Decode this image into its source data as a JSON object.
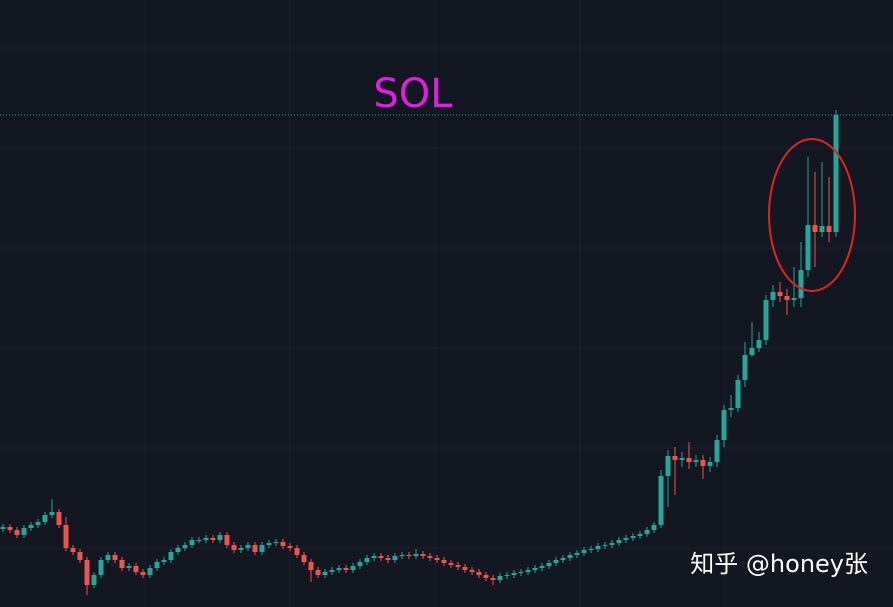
{
  "chart_data": {
    "type": "candlestick",
    "title": "SOL",
    "watermark": "知乎 @honey张",
    "up_color": "#26a69a",
    "down_color": "#ef5350",
    "price_line_color": "#26a69a",
    "ylim": [
      0,
      607
    ],
    "price_line": 492,
    "open": [
      78,
      80,
      77,
      72,
      79,
      82,
      85,
      92,
      95,
      82,
      59,
      55,
      47,
      22,
      32,
      47,
      52,
      47,
      39,
      41,
      35,
      32,
      39,
      45,
      47,
      55,
      59,
      62,
      67,
      67,
      69,
      67,
      72,
      62,
      57,
      59,
      62,
      55,
      62,
      64,
      65,
      61,
      59,
      52,
      45,
      37,
      32,
      35,
      37,
      39,
      37,
      41,
      45,
      49,
      51,
      49,
      47,
      51,
      52,
      51,
      53,
      51,
      49,
      47,
      44,
      42,
      40,
      37,
      35,
      32,
      29,
      27,
      31,
      32,
      34,
      35,
      37,
      39,
      41,
      44,
      47,
      49,
      52,
      54,
      57,
      58,
      61,
      62,
      64,
      67,
      69,
      71,
      73,
      77,
      82,
      131,
      151,
      147,
      149,
      145,
      147,
      141,
      145,
      167,
      197,
      199,
      227,
      252,
      259,
      267,
      307,
      315,
      311,
      307,
      309,
      337,
      382,
      375,
      381,
      375
    ],
    "high": [
      83,
      83,
      80,
      82,
      85,
      88,
      95,
      108,
      98,
      90,
      62,
      58,
      50,
      35,
      50,
      55,
      55,
      50,
      44,
      44,
      38,
      42,
      48,
      50,
      58,
      62,
      65,
      70,
      70,
      72,
      72,
      75,
      75,
      65,
      62,
      65,
      65,
      65,
      67,
      68,
      68,
      64,
      62,
      55,
      48,
      40,
      38,
      40,
      42,
      42,
      44,
      48,
      52,
      54,
      54,
      52,
      54,
      55,
      55,
      58,
      56,
      54,
      52,
      50,
      47,
      45,
      43,
      40,
      38,
      35,
      32,
      34,
      35,
      37,
      38,
      40,
      42,
      44,
      47,
      50,
      52,
      55,
      57,
      60,
      61,
      64,
      65,
      67,
      70,
      72,
      74,
      76,
      80,
      85,
      137,
      157,
      160,
      155,
      165,
      152,
      152,
      150,
      172,
      202,
      212,
      232,
      265,
      285,
      275,
      312,
      322,
      325,
      318,
      340,
      365,
      450,
      435,
      445,
      430,
      497
    ],
    "low": [
      75,
      74,
      69,
      69,
      76,
      79,
      82,
      89,
      79,
      56,
      52,
      44,
      12,
      19,
      29,
      44,
      44,
      36,
      36,
      32,
      29,
      29,
      36,
      42,
      44,
      52,
      56,
      59,
      64,
      64,
      64,
      64,
      59,
      54,
      54,
      56,
      52,
      52,
      59,
      61,
      58,
      56,
      49,
      42,
      25,
      29,
      29,
      32,
      34,
      34,
      34,
      38,
      42,
      46,
      46,
      44,
      44,
      48,
      48,
      48,
      48,
      46,
      44,
      41,
      39,
      37,
      34,
      32,
      29,
      26,
      22,
      24,
      28,
      29,
      31,
      32,
      34,
      36,
      38,
      41,
      44,
      46,
      49,
      51,
      54,
      55,
      58,
      59,
      61,
      64,
      66,
      68,
      70,
      74,
      79,
      100,
      112,
      140,
      138,
      140,
      128,
      135,
      140,
      160,
      190,
      195,
      220,
      250,
      255,
      262,
      300,
      305,
      292,
      300,
      300,
      330,
      340,
      370,
      365,
      370
    ],
    "close": [
      80,
      77,
      72,
      79,
      82,
      85,
      92,
      95,
      82,
      59,
      55,
      47,
      22,
      32,
      47,
      52,
      47,
      39,
      41,
      35,
      32,
      39,
      45,
      47,
      55,
      59,
      62,
      67,
      67,
      69,
      67,
      72,
      62,
      57,
      59,
      62,
      55,
      62,
      64,
      65,
      61,
      59,
      52,
      45,
      37,
      32,
      35,
      37,
      39,
      37,
      41,
      45,
      49,
      51,
      49,
      47,
      51,
      52,
      51,
      53,
      51,
      49,
      47,
      44,
      42,
      40,
      37,
      35,
      32,
      29,
      27,
      31,
      32,
      34,
      35,
      37,
      39,
      41,
      44,
      47,
      49,
      52,
      54,
      57,
      58,
      61,
      62,
      64,
      67,
      69,
      71,
      73,
      77,
      82,
      131,
      151,
      147,
      149,
      145,
      147,
      141,
      145,
      167,
      197,
      199,
      227,
      252,
      259,
      267,
      307,
      315,
      311,
      307,
      309,
      337,
      382,
      375,
      381,
      375,
      492
    ]
  }
}
